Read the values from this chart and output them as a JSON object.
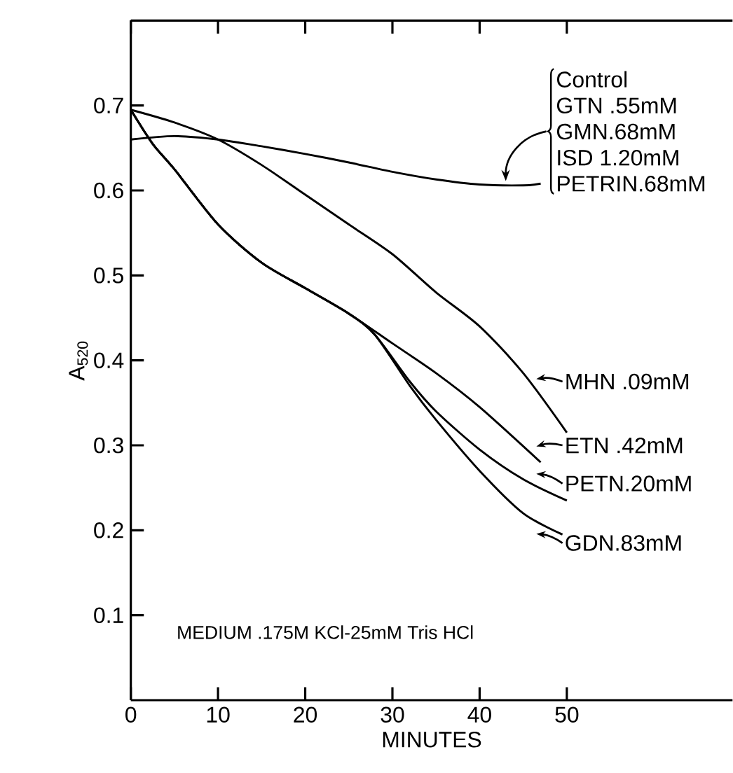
{
  "chart_data": {
    "type": "line",
    "xlabel": "MINUTES",
    "ylabel": "A$_{520}$",
    "xlim": [
      0,
      69
    ],
    "ylim": [
      0,
      0.8
    ],
    "xticks": [
      0,
      10,
      20,
      30,
      40,
      50
    ],
    "yticks": [
      0.1,
      0.2,
      0.3,
      0.4,
      0.5,
      0.6,
      0.7
    ],
    "color": "#000000",
    "legend": "right",
    "grid": false,
    "marker": "none",
    "line_style": "solid",
    "series": [
      {
        "x": [
          0,
          5,
          10,
          15,
          20,
          25,
          30,
          35,
          40,
          45,
          47
        ],
        "values": [
          0.66,
          0.664,
          0.66,
          0.652,
          0.643,
          0.633,
          0.622,
          0.613,
          0.607,
          0.606,
          0.608
        ]
      },
      {
        "name": "MHN .09mM",
        "x": [
          0,
          5,
          10,
          15,
          20,
          25,
          30,
          35,
          40,
          45,
          50
        ],
        "values": [
          0.695,
          0.68,
          0.66,
          0.63,
          0.595,
          0.56,
          0.525,
          0.48,
          0.44,
          0.385,
          0.315
        ]
      },
      {
        "name": "ETN .42mM",
        "x": [
          0,
          2.5,
          5,
          10,
          15,
          20,
          25,
          30,
          35,
          40,
          47
        ],
        "values": [
          0.695,
          0.655,
          0.625,
          0.56,
          0.515,
          0.485,
          0.455,
          0.42,
          0.385,
          0.345,
          0.28
        ]
      },
      {
        "name": "PETN.20mM",
        "x": [
          0,
          2.5,
          5,
          10,
          15,
          20,
          25,
          28,
          32,
          35,
          40,
          45,
          50
        ],
        "values": [
          0.695,
          0.655,
          0.625,
          0.56,
          0.515,
          0.485,
          0.455,
          0.43,
          0.375,
          0.34,
          0.295,
          0.26,
          0.235
        ]
      },
      {
        "name": "GDN.83mM",
        "x": [
          0,
          2.5,
          5,
          10,
          15,
          20,
          25,
          28,
          32,
          35,
          40,
          45,
          49.5
        ],
        "values": [
          0.695,
          0.655,
          0.625,
          0.56,
          0.515,
          0.485,
          0.455,
          0.43,
          0.37,
          0.33,
          0.27,
          0.22,
          0.195
        ]
      }
    ],
    "annotations": [
      "Control",
      "GTN .55mM",
      "GMN.68mM",
      "ISD 1.20mM",
      "PETRIN.68mM",
      "MEDIUM .175M KCl-25mM Tris HCl"
    ]
  }
}
